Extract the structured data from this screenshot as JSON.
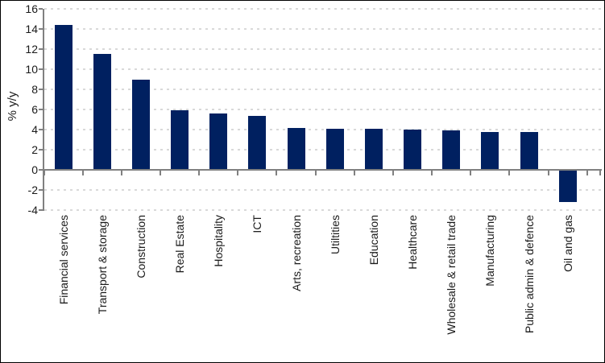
{
  "chart_data": {
    "type": "bar",
    "title": "",
    "xlabel": "",
    "ylabel": "% y/y",
    "categories": [
      "Financial services",
      "Transport & storage",
      "Construction",
      "Real Estate",
      "Hospitality",
      "ICT",
      "Arts, recreation",
      "Utiltities",
      "Education",
      "Healthcare",
      "Wholesale & retail trade",
      "Manufacturing",
      "Public admin & defence",
      "Oil and gas"
    ],
    "values": [
      14.4,
      11.5,
      9.0,
      5.9,
      5.6,
      5.4,
      4.2,
      4.1,
      4.1,
      4.0,
      3.9,
      3.8,
      3.8,
      -3.2
    ],
    "ylim": [
      -4,
      16
    ],
    "yticks": [
      16,
      14,
      12,
      10,
      8,
      6,
      4,
      2,
      0,
      -2,
      -4
    ],
    "grid": "horizontal-dotted",
    "legend": "none",
    "bar_color": "#002060",
    "axis_color": "#808080",
    "gridline_color": "#d9d9d9",
    "text_color": "#1a1a1a"
  }
}
